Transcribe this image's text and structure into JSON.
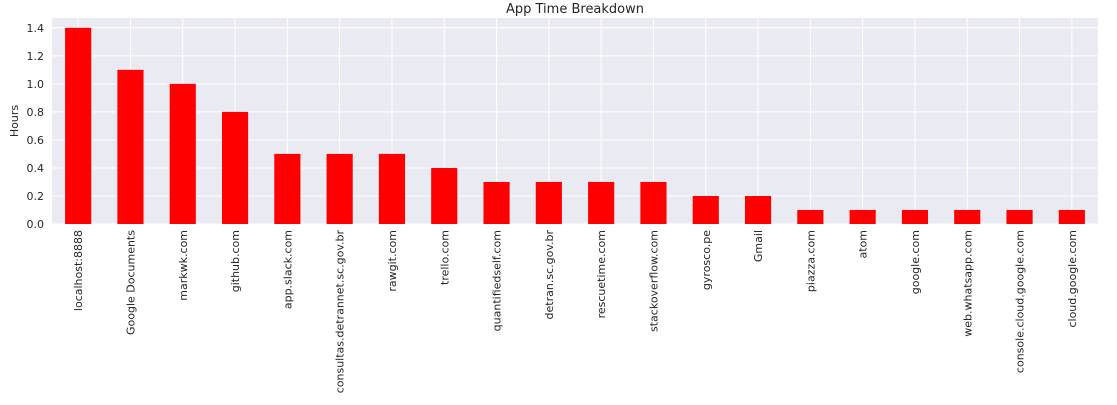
{
  "chart_data": {
    "type": "bar",
    "title": "App Time Breakdown",
    "xlabel": "",
    "ylabel": "Hours",
    "ylim": [
      0,
      1.47
    ],
    "yticks": [
      0.0,
      0.2,
      0.4,
      0.6,
      0.8,
      1.0,
      1.2,
      1.4
    ],
    "ytick_labels": [
      "0.0",
      "0.2",
      "0.4",
      "0.6",
      "0.8",
      "1.0",
      "1.2",
      "1.4"
    ],
    "grid": true,
    "bar_color": "#ff0000",
    "background_color": "#eaeaf2",
    "grid_color": "#ffffff",
    "categories": [
      "localhost:8888",
      "Google Documents",
      "markwk.com",
      "github.com",
      "app.slack.com",
      "consultas.detrannet.sc.gov.br",
      "rawgit.com",
      "trello.com",
      "quantifiedself.com",
      "detran.sc.gov.br",
      "rescuetime.com",
      "stackoverflow.com",
      "gyrosco.pe",
      "Gmail",
      "piazza.com",
      "atom",
      "google.com",
      "web.whatsapp.com",
      "console.cloud.google.com",
      "cloud.google.com"
    ],
    "values": [
      1.4,
      1.1,
      1.0,
      0.8,
      0.5,
      0.5,
      0.5,
      0.4,
      0.3,
      0.3,
      0.3,
      0.3,
      0.2,
      0.2,
      0.1,
      0.1,
      0.1,
      0.1,
      0.1,
      0.1
    ]
  }
}
